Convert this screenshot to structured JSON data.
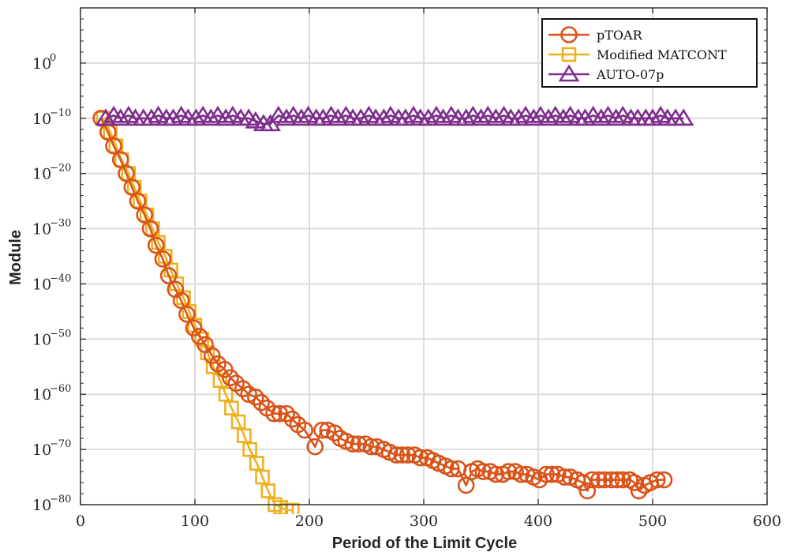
{
  "chart_data": {
    "type": "scatter",
    "xlabel": "Period of the Limit Cycle",
    "ylabel": "Module",
    "xlim": [
      0,
      600
    ],
    "ylim_log10": [
      -80,
      10
    ],
    "y_scale": "log",
    "grid": true,
    "legend_position": "top-right",
    "x_ticks": [
      {
        "value": 0,
        "label": "0"
      },
      {
        "value": 100,
        "label": "100"
      },
      {
        "value": 200,
        "label": "200"
      },
      {
        "value": 300,
        "label": "300"
      },
      {
        "value": 400,
        "label": "400"
      },
      {
        "value": 500,
        "label": "500"
      },
      {
        "value": 600,
        "label": "600"
      }
    ],
    "y_ticks": [
      {
        "exponent": 0,
        "base": "10",
        "exp_label": "0"
      },
      {
        "exponent": -10,
        "base": "10",
        "exp_label": "−10"
      },
      {
        "exponent": -20,
        "base": "10",
        "exp_label": "−20"
      },
      {
        "exponent": -30,
        "base": "10",
        "exp_label": "−30"
      },
      {
        "exponent": -40,
        "base": "10",
        "exp_label": "−40"
      },
      {
        "exponent": -50,
        "base": "10",
        "exp_label": "−50"
      },
      {
        "exponent": -60,
        "base": "10",
        "exp_label": "−60"
      },
      {
        "exponent": -70,
        "base": "10",
        "exp_label": "−70"
      },
      {
        "exponent": -80,
        "base": "10",
        "exp_label": "−80"
      }
    ],
    "series": [
      {
        "name": "pTOAR",
        "marker": "circle",
        "color": "#D95319",
        "x": [
          18,
          24,
          29,
          35,
          40,
          45,
          50,
          56,
          61,
          66,
          72,
          77,
          83,
          88,
          93,
          99,
          104,
          109,
          115,
          120,
          126,
          131,
          136,
          142,
          147,
          153,
          158,
          163,
          169,
          174,
          180,
          185,
          190,
          196,
          205,
          211,
          216,
          222,
          227,
          232,
          238,
          243,
          249,
          254,
          259,
          265,
          270,
          276,
          281,
          286,
          292,
          297,
          303,
          308,
          313,
          319,
          324,
          330,
          337,
          342,
          347,
          352,
          358,
          363,
          369,
          374,
          380,
          385,
          390,
          396,
          401,
          407,
          412,
          417,
          423,
          428,
          434,
          439,
          443,
          447,
          453,
          458,
          464,
          469,
          474,
          480,
          484,
          488,
          493,
          498,
          504,
          510
        ],
        "log10_y": [
          -10,
          -12.5,
          -15,
          -17.5,
          -20,
          -22.5,
          -25,
          -27.5,
          -30,
          -33,
          -35.5,
          -38.5,
          -41,
          -43,
          -45.5,
          -48,
          -49.5,
          -51,
          -53,
          -54.5,
          -55.5,
          -57,
          -58,
          -59,
          -60,
          -60.5,
          -61.5,
          -62.5,
          -63.5,
          -63.5,
          -63.5,
          -64.5,
          -65.5,
          -66.5,
          -69.5,
          -66.5,
          -66.5,
          -67,
          -68,
          -68.5,
          -69,
          -69,
          -69,
          -69.5,
          -69.5,
          -70,
          -70.5,
          -71,
          -71,
          -71,
          -71,
          -71.5,
          -71.5,
          -72,
          -72.5,
          -73,
          -73.5,
          -73.5,
          -76.5,
          -74,
          -73.5,
          -74,
          -74,
          -74.5,
          -74.5,
          -74,
          -74,
          -74.5,
          -74.5,
          -75,
          -75.5,
          -74.5,
          -74.5,
          -74.5,
          -75,
          -75,
          -75.5,
          -76,
          -77.5,
          -75.5,
          -75.5,
          -75.5,
          -75.5,
          -75.5,
          -75.5,
          -75.5,
          -76,
          -77.5,
          -76.5,
          -76,
          -75.5,
          -75.5
        ]
      },
      {
        "name": "Modified MATCONT",
        "marker": "square",
        "color": "#EDB120",
        "x": [
          20,
          26,
          31,
          36,
          42,
          47,
          52,
          58,
          63,
          68,
          74,
          79,
          84,
          90,
          95,
          100,
          106,
          111,
          116,
          122,
          127,
          132,
          138,
          143,
          148,
          154,
          159,
          164,
          170,
          175,
          180,
          185
        ],
        "log10_y": [
          -10,
          -12.5,
          -15,
          -17.5,
          -20,
          -22.5,
          -25,
          -27.5,
          -30,
          -32.5,
          -35,
          -37.5,
          -40,
          -42.5,
          -45,
          -47.5,
          -50,
          -52.5,
          -55,
          -57.5,
          -60,
          -62.5,
          -65,
          -67.5,
          -70,
          -72.5,
          -75,
          -77.5,
          -80,
          -80.5,
          -81,
          -81
        ]
      },
      {
        "name": "AUTO-07p",
        "marker": "triangle",
        "color": "#7E2F8E",
        "x": [
          22,
          29,
          35,
          42,
          48,
          55,
          62,
          68,
          75,
          81,
          88,
          94,
          101,
          107,
          114,
          120,
          127,
          133,
          140,
          147,
          153,
          160,
          166,
          173,
          180,
          186,
          193,
          199,
          206,
          212,
          219,
          225,
          232,
          238,
          245,
          252,
          258,
          265,
          271,
          278,
          284,
          291,
          297,
          304,
          311,
          317,
          324,
          330,
          337,
          343,
          350,
          356,
          363,
          370,
          376,
          383,
          389,
          396,
          402,
          409,
          415,
          422,
          428,
          435,
          441,
          448,
          455,
          461,
          468,
          474,
          481,
          487,
          494,
          500,
          507,
          513,
          520,
          527
        ],
        "log10_y": [
          -10,
          -9.5,
          -10,
          -9.5,
          -10,
          -10,
          -10,
          -9.5,
          -10,
          -10,
          -9.5,
          -10,
          -10,
          -9.5,
          -10,
          -9.5,
          -10,
          -9.5,
          -10,
          -10,
          -10.5,
          -11,
          -11,
          -9.5,
          -10,
          -9.5,
          -10,
          -9.5,
          -10,
          -10,
          -9.5,
          -10,
          -9.5,
          -10,
          -10,
          -9.5,
          -10,
          -10,
          -9.5,
          -10,
          -10,
          -9.5,
          -10,
          -10,
          -9.5,
          -10,
          -9.5,
          -10,
          -10,
          -9.5,
          -10,
          -9.5,
          -10,
          -9.5,
          -10,
          -10,
          -9.5,
          -10,
          -9.5,
          -10,
          -9.5,
          -10,
          -9.5,
          -10,
          -10,
          -9.5,
          -10,
          -9.5,
          -10,
          -9.5,
          -10,
          -10,
          -10,
          -10,
          -9.5,
          -10,
          -10,
          -10
        ]
      }
    ]
  }
}
